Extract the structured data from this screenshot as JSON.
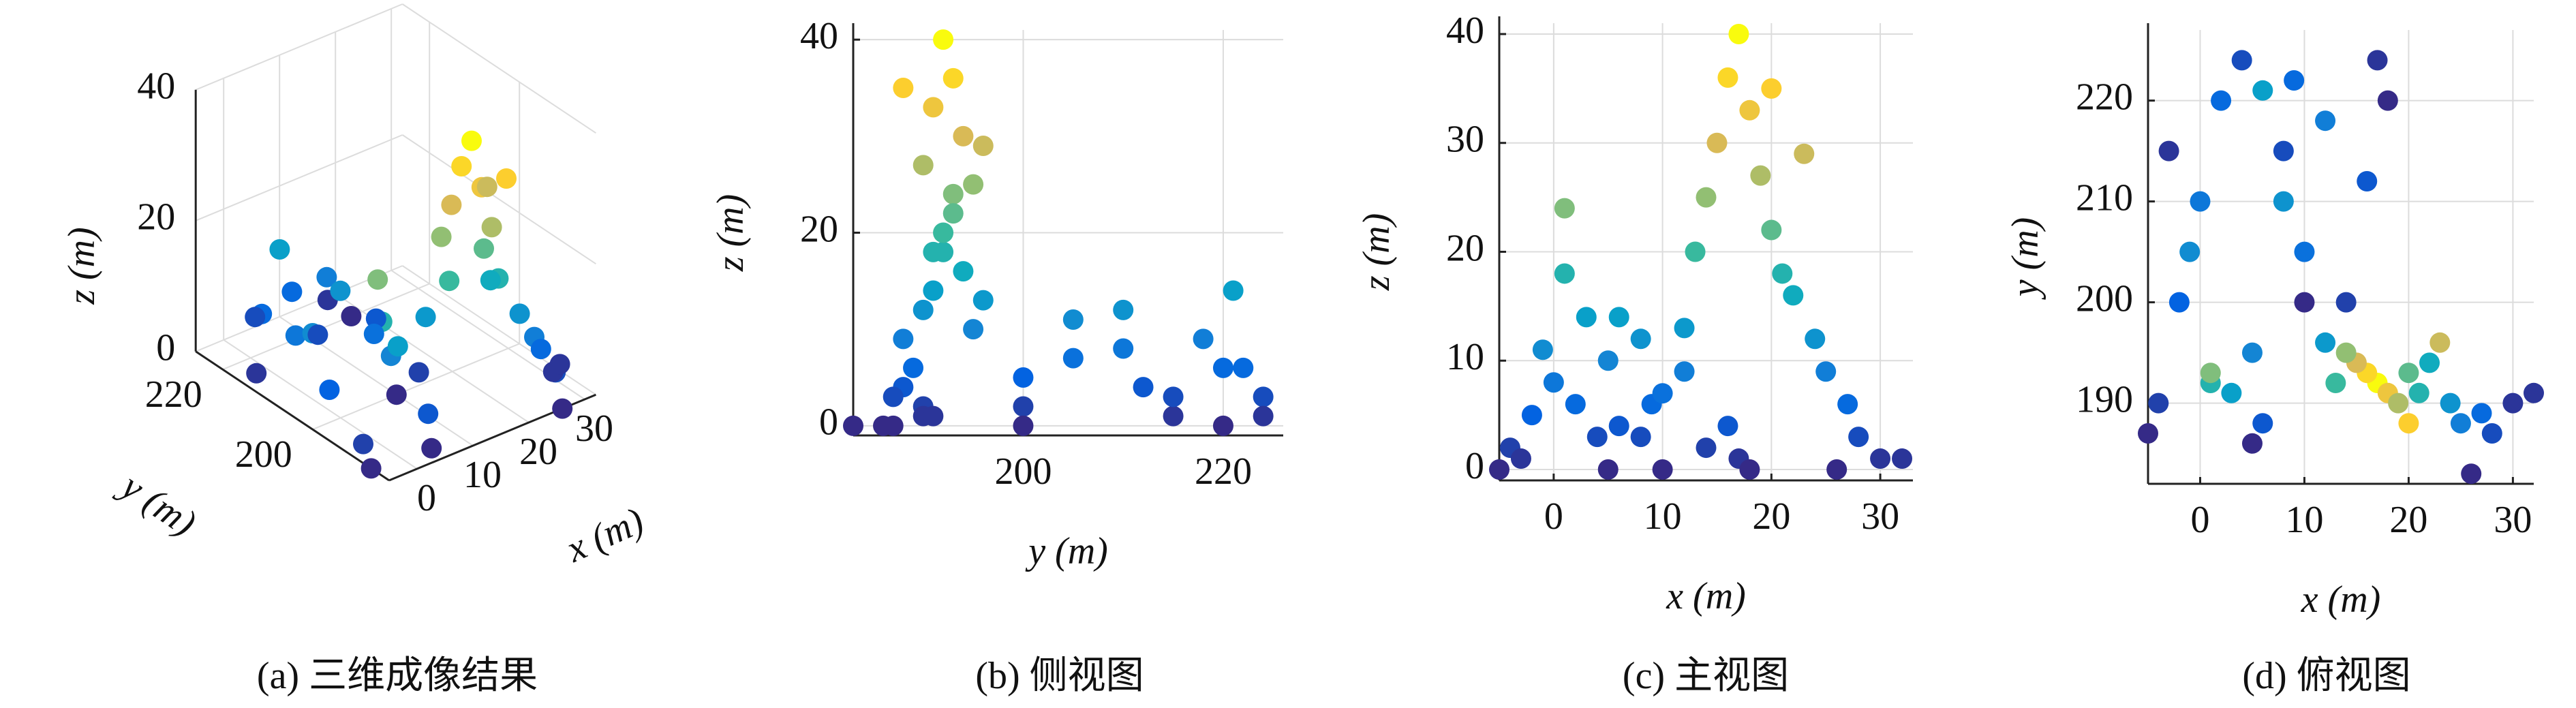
{
  "chart_data": [
    {
      "type": "scatter3d",
      "caption": "(a) 三维成像结果",
      "xlabel": "x (m)",
      "ylabel": "y (m)",
      "zlabel": "z (m)",
      "x": [
        -4,
        -2,
        0,
        2,
        4,
        5,
        -3,
        1,
        1,
        3,
        -1,
        6,
        9,
        12,
        16,
        10,
        14,
        17,
        8,
        17,
        16,
        18,
        15,
        19,
        14,
        20,
        13,
        21,
        22,
        12,
        24,
        25,
        27,
        28,
        30,
        26,
        23,
        20,
        -5,
        5,
        10,
        18,
        32,
        8,
        6
      ],
      "y": [
        190,
        200,
        210,
        220,
        224,
        195,
        215,
        192,
        193,
        191,
        205,
        188,
        222,
        218,
        212,
        205,
        200,
        224,
        210,
        192,
        193,
        191,
        194,
        190,
        195,
        193,
        192,
        191,
        194,
        196,
        190,
        188,
        189,
        187,
        190,
        183,
        196,
        188,
        187,
        186,
        200,
        220,
        191,
        215,
        221
      ],
      "z": [
        2,
        5,
        8,
        6,
        3,
        10,
        1,
        18,
        24,
        14,
        11,
        4,
        6,
        9,
        4,
        7,
        2,
        1,
        12,
        40,
        36,
        33,
        30,
        27,
        25,
        22,
        20,
        18,
        16,
        13,
        12,
        9,
        6,
        3,
        1,
        0,
        29,
        35,
        0,
        0,
        0,
        0,
        1,
        3,
        14
      ],
      "xlim": [
        -5,
        32
      ],
      "ylim": [
        183,
        226
      ],
      "zlim": [
        0,
        40
      ],
      "xticks": [
        0,
        10,
        20,
        30
      ],
      "yticks": [
        200,
        220
      ],
      "zticks": [
        0,
        20,
        40
      ],
      "grid": true,
      "colormap": "parula"
    },
    {
      "type": "scatter",
      "caption": "(b) 侧视图",
      "xlabel": "y (m)",
      "ylabel": "z (m)",
      "x": [
        190,
        200,
        210,
        220,
        224,
        195,
        215,
        192,
        193,
        191,
        205,
        188,
        222,
        218,
        212,
        205,
        200,
        224,
        210,
        192,
        193,
        191,
        194,
        190,
        195,
        193,
        192,
        191,
        194,
        196,
        190,
        188,
        189,
        187,
        190,
        183,
        196,
        188,
        187,
        186,
        200,
        220,
        191,
        215,
        221
      ],
      "y": [
        2,
        5,
        8,
        6,
        3,
        10,
        1,
        18,
        24,
        14,
        11,
        4,
        6,
        9,
        4,
        7,
        2,
        1,
        12,
        40,
        36,
        33,
        30,
        27,
        25,
        22,
        20,
        18,
        16,
        13,
        12,
        9,
        6,
        3,
        1,
        0,
        29,
        35,
        0,
        0,
        0,
        0,
        1,
        3,
        14
      ],
      "xlim": [
        183,
        226
      ],
      "ylim": [
        -1,
        41
      ],
      "xticks": [
        200,
        220
      ],
      "yticks": [
        0,
        20,
        40
      ],
      "grid": true,
      "colormap": "parula"
    },
    {
      "type": "scatter",
      "caption": "(c) 主视图",
      "xlabel": "x (m)",
      "ylabel": "z (m)",
      "x": [
        -4,
        -2,
        0,
        2,
        4,
        5,
        -3,
        1,
        1,
        3,
        -1,
        6,
        9,
        12,
        16,
        10,
        14,
        17,
        8,
        17,
        16,
        18,
        15,
        19,
        14,
        20,
        13,
        21,
        22,
        12,
        24,
        25,
        27,
        28,
        30,
        26,
        23,
        20,
        -5,
        5,
        10,
        18,
        32,
        8,
        6
      ],
      "y": [
        2,
        5,
        8,
        6,
        3,
        10,
        1,
        18,
        24,
        14,
        11,
        4,
        6,
        9,
        4,
        7,
        2,
        1,
        12,
        40,
        36,
        33,
        30,
        27,
        25,
        22,
        20,
        18,
        16,
        13,
        12,
        9,
        6,
        3,
        1,
        0,
        29,
        35,
        0,
        0,
        0,
        0,
        1,
        3,
        14
      ],
      "xlim": [
        -5,
        33
      ],
      "ylim": [
        -1,
        41
      ],
      "xticks": [
        0,
        10,
        20,
        30
      ],
      "yticks": [
        0,
        10,
        20,
        30,
        40
      ],
      "grid": true,
      "colormap": "parula"
    },
    {
      "type": "scatter",
      "caption": "(d) 俯视图",
      "xlabel": "x (m)",
      "ylabel": "y (m)",
      "x": [
        -4,
        -2,
        0,
        2,
        4,
        5,
        -3,
        1,
        1,
        3,
        -1,
        6,
        9,
        12,
        16,
        10,
        14,
        17,
        8,
        17,
        16,
        18,
        15,
        19,
        14,
        20,
        13,
        21,
        22,
        12,
        24,
        25,
        27,
        28,
        30,
        26,
        23,
        20,
        -5,
        5,
        10,
        18,
        32,
        8,
        6
      ],
      "y": [
        190,
        200,
        210,
        220,
        224,
        195,
        215,
        192,
        193,
        191,
        205,
        188,
        222,
        218,
        212,
        205,
        200,
        224,
        210,
        192,
        193,
        191,
        194,
        190,
        195,
        193,
        192,
        191,
        194,
        196,
        190,
        188,
        189,
        187,
        190,
        183,
        196,
        188,
        187,
        186,
        200,
        220,
        191,
        215,
        221
      ],
      "z": [
        2,
        5,
        8,
        6,
        3,
        10,
        1,
        18,
        24,
        14,
        11,
        4,
        6,
        9,
        4,
        7,
        2,
        1,
        12,
        40,
        36,
        33,
        30,
        27,
        25,
        22,
        20,
        18,
        16,
        13,
        12,
        9,
        6,
        3,
        1,
        0,
        29,
        35,
        0,
        0,
        0,
        0,
        1,
        3,
        14
      ],
      "xlim": [
        -5,
        32
      ],
      "ylim": [
        182,
        227
      ],
      "xticks": [
        0,
        10,
        20,
        30
      ],
      "yticks": [
        190,
        200,
        210,
        220
      ],
      "grid": true,
      "colormap": "parula"
    }
  ]
}
